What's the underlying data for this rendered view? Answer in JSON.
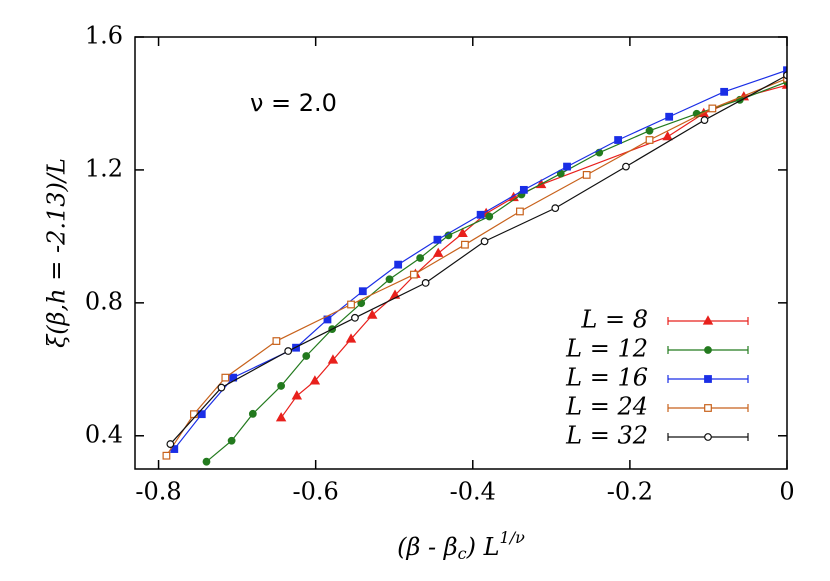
{
  "chart_data": {
    "type": "line",
    "ylabel": "ξ(β,h = -2.13)/L",
    "xlabel": {
      "main": "(β - β",
      "sub": "c",
      "mid": ") L",
      "sup": "1/ν"
    },
    "annotation": "ν = 2.0",
    "xlim": [
      -0.83,
      0
    ],
    "ylim": [
      0.3,
      1.6
    ],
    "xticks": [
      -0.8,
      -0.6,
      -0.4,
      -0.2,
      0
    ],
    "yticks": [
      0.4,
      0.8,
      1.2,
      1.6
    ],
    "legend": "lower right",
    "series": [
      {
        "name": "L = 8",
        "color": "#e8201c",
        "marker": "triangle",
        "filled": true,
        "x": [
          -0.644,
          -0.624,
          -0.601,
          -0.578,
          -0.555,
          -0.528,
          -0.499,
          -0.473,
          -0.444,
          -0.413,
          -0.383,
          -0.348,
          -0.313,
          -0.152,
          -0.106,
          -0.055,
          0
        ],
        "values": [
          0.454,
          0.52,
          0.565,
          0.628,
          0.691,
          0.763,
          0.823,
          0.886,
          0.949,
          1.009,
          1.069,
          1.117,
          1.156,
          1.3,
          1.37,
          1.42,
          1.455
        ]
      },
      {
        "name": "L = 12",
        "color": "#237a1e",
        "marker": "circle",
        "filled": true,
        "x": [
          -0.739,
          -0.707,
          -0.68,
          -0.644,
          -0.612,
          -0.579,
          -0.542,
          -0.506,
          -0.467,
          -0.431,
          -0.379,
          -0.338,
          -0.288,
          -0.239,
          -0.175,
          -0.115,
          -0.06,
          0
        ],
        "values": [
          0.322,
          0.385,
          0.466,
          0.55,
          0.64,
          0.721,
          0.799,
          0.871,
          0.935,
          1.003,
          1.06,
          1.126,
          1.189,
          1.252,
          1.318,
          1.369,
          1.411,
          1.465
        ]
      },
      {
        "name": "L = 16",
        "color": "#1a2ee6",
        "marker": "square",
        "filled": true,
        "x": [
          -0.78,
          -0.745,
          -0.705,
          -0.625,
          -0.585,
          -0.54,
          -0.495,
          -0.445,
          -0.39,
          -0.335,
          -0.28,
          -0.215,
          -0.15,
          -0.08,
          0
        ],
        "values": [
          0.36,
          0.465,
          0.575,
          0.665,
          0.75,
          0.835,
          0.915,
          0.99,
          1.065,
          1.14,
          1.21,
          1.29,
          1.36,
          1.435,
          1.5
        ]
      },
      {
        "name": "L = 24",
        "color": "#c8621c",
        "marker": "square",
        "filled": false,
        "x": [
          -0.79,
          -0.755,
          -0.715,
          -0.65,
          -0.555,
          -0.475,
          -0.41,
          -0.34,
          -0.255,
          -0.175,
          -0.095,
          0
        ],
        "values": [
          0.34,
          0.465,
          0.575,
          0.685,
          0.795,
          0.885,
          0.975,
          1.075,
          1.185,
          1.29,
          1.385,
          1.475
        ]
      },
      {
        "name": "L = 32",
        "color": "#111111",
        "marker": "circle",
        "filled": false,
        "x": [
          -0.785,
          -0.72,
          -0.635,
          -0.55,
          -0.46,
          -0.385,
          -0.295,
          -0.205,
          -0.105,
          0
        ],
        "values": [
          0.375,
          0.545,
          0.655,
          0.755,
          0.86,
          0.985,
          1.085,
          1.21,
          1.35,
          1.485
        ]
      }
    ]
  }
}
